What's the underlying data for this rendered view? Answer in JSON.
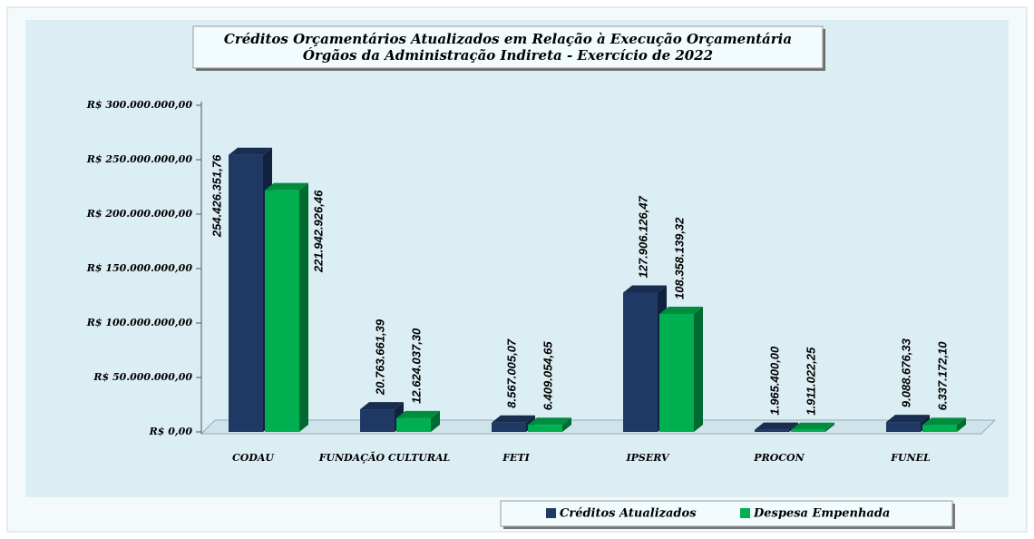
{
  "chart_data": {
    "type": "bar3d",
    "title": "Créditos Orçamentários  Atualizados em Relação à Execução Orçamentária",
    "subtitle": "Órgãos da Administração Indireta - Exercício de 2022",
    "categories": [
      "CODAU",
      "FUNDAÇÃO CULTURAL",
      "FETI",
      "IPSERV",
      "PROCON",
      "FUNEL"
    ],
    "series": [
      {
        "name": "Créditos Atualizados",
        "color": "#1f3864",
        "values": [
          254426351.76,
          20763661.39,
          8567005.07,
          127906126.47,
          1965400.0,
          9088676.33
        ],
        "value_labels": [
          "254.426.351,76",
          "20.763.661,39",
          "8.567.005,07",
          "127.906.126,47",
          "1.965.400,00",
          "9.088.676,33"
        ]
      },
      {
        "name": "Despesa Empenhada",
        "color": "#00b050",
        "values": [
          221942926.46,
          12624037.3,
          6409054.65,
          108358139.32,
          1911022.25,
          6337172.1
        ],
        "value_labels": [
          "221.942.926,46",
          "12.624.037,30",
          "6.409.054,65",
          "108.358.139,32",
          "1.911.022,25",
          "6.337.172,10"
        ]
      }
    ],
    "ylim": [
      0,
      300000000
    ],
    "yticks": [
      {
        "value": 0,
        "label": "R$ 0,00"
      },
      {
        "value": 50000000,
        "label": "R$ 50.000.000,00"
      },
      {
        "value": 100000000,
        "label": "R$ 100.000.000,00"
      },
      {
        "value": 150000000,
        "label": "R$ 150.000.000,00"
      },
      {
        "value": 200000000,
        "label": "R$ 200.000.000,00"
      },
      {
        "value": 250000000,
        "label": "R$ 250.000.000,00"
      },
      {
        "value": 300000000,
        "label": "R$ 300.000.000,00"
      }
    ],
    "legend": "bottom-right"
  }
}
